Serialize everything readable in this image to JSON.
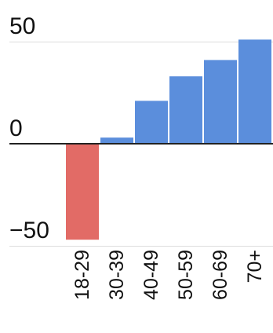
{
  "chart_data": {
    "type": "bar",
    "categories": [
      "18-29",
      "30-39",
      "40-49",
      "50-59",
      "60-69",
      "70+"
    ],
    "values": [
      -47,
      3,
      21,
      33,
      41,
      51
    ],
    "ylim": [
      -53,
      53
    ],
    "y_ticks": [
      {
        "value": 50,
        "label": "50"
      },
      {
        "value": 0,
        "label": "0"
      },
      {
        "value": -50,
        "label": "−50"
      }
    ],
    "grid": true,
    "legend": "none",
    "colors": {
      "positive": "#5b8edc",
      "negative": "#e26b66",
      "zero_line": "#222222",
      "grid": "#dddddd"
    }
  }
}
